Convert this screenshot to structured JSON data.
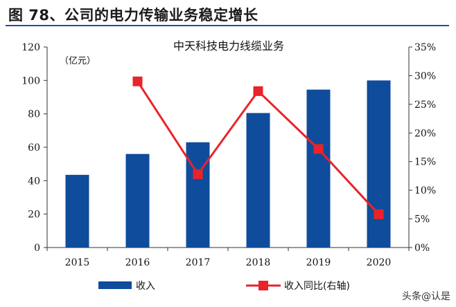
{
  "figure_title": "图 78、公司的电力传输业务稳定增长",
  "watermark": "头条@认是",
  "colors": {
    "bar": "#0f4c9c",
    "line": "#e8232a",
    "rule": "#1f4e9a",
    "axis": "#333333"
  },
  "chart_data": {
    "type": "bar",
    "title": "中天科技电力线缆业务",
    "unit_label": "（亿元）",
    "categories": [
      "2015",
      "2016",
      "2017",
      "2018",
      "2019",
      "2020"
    ],
    "ylim": [
      0,
      120
    ],
    "y_ticks": [
      "0",
      "20",
      "40",
      "60",
      "80",
      "100",
      "120"
    ],
    "y2lim": [
      0,
      0.35
    ],
    "y2_ticks": [
      "0%",
      "5%",
      "10%",
      "15%",
      "20%",
      "25%",
      "30%",
      "35%"
    ],
    "grid": false,
    "legend_position": "bottom",
    "series": [
      {
        "name": "收入",
        "type": "bar",
        "axis": "left",
        "color": "#0f4c9c",
        "values": [
          43.5,
          56,
          63,
          80.5,
          94.5,
          100
        ]
      },
      {
        "name": "收入同比(右轴)",
        "type": "line",
        "axis": "right",
        "color": "#e8232a",
        "marker": "square",
        "values": [
          null,
          0.29,
          0.128,
          0.273,
          0.172,
          0.058
        ]
      }
    ]
  }
}
